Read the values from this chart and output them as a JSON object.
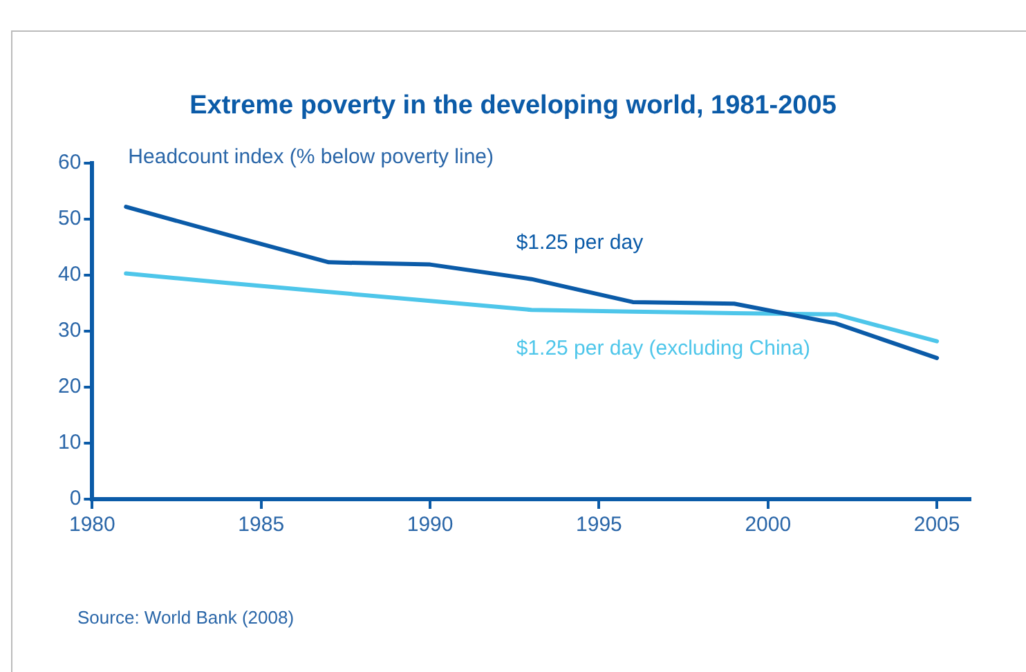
{
  "chart_data": {
    "type": "line",
    "title": "Extreme poverty in the developing world, 1981-2005",
    "ylabel": "Headcount index (% below poverty line)",
    "x": [
      1981,
      1984,
      1987,
      1990,
      1993,
      1996,
      1999,
      2002,
      2005
    ],
    "series": [
      {
        "name": "$1.25 per day",
        "color": "#0b5ba8",
        "values": [
          52.2,
          47.2,
          42.3,
          41.9,
          39.3,
          35.2,
          34.9,
          31.4,
          25.2
        ]
      },
      {
        "name": "$1.25 per day (excluding China)",
        "color": "#4ec6ea",
        "values": [
          40.3,
          38.6,
          37.0,
          35.4,
          33.8,
          33.5,
          33.2,
          33.0,
          28.2
        ]
      }
    ],
    "xlim": [
      1980,
      2006
    ],
    "xticks": [
      1980,
      1985,
      1990,
      1995,
      2000,
      2005
    ],
    "ylim": [
      0,
      60
    ],
    "yticks": [
      0,
      10,
      20,
      30,
      40,
      50,
      60
    ],
    "grid": false,
    "legend": false,
    "marker": "none",
    "line_style": "solid",
    "annotations": [
      "Source: World Bank (2008)"
    ]
  }
}
